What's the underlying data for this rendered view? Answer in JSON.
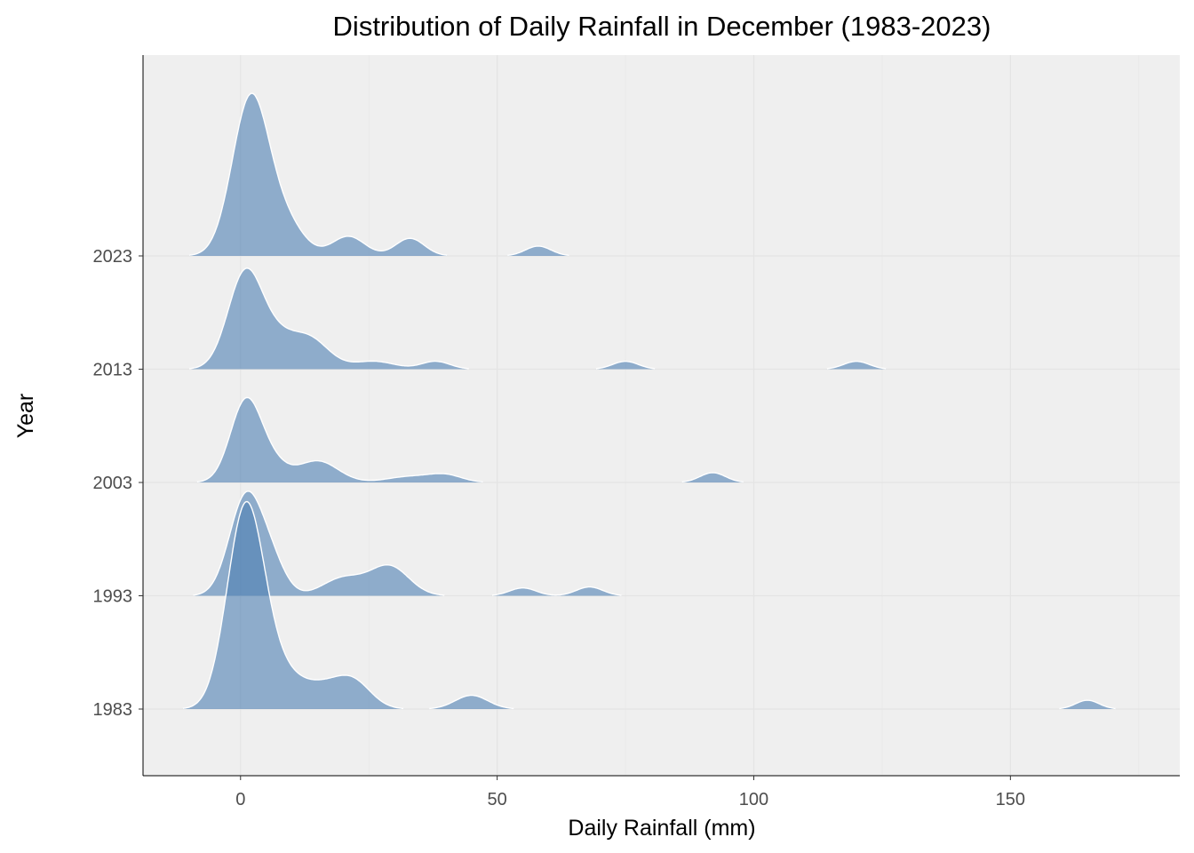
{
  "chart_data": {
    "type": "ridgeline",
    "title": "Distribution of Daily Rainfall in December (1983-2023)",
    "xlabel": "Daily Rainfall (mm)",
    "ylabel": "Year",
    "xlim": [
      -19,
      183
    ],
    "xticks": [
      0,
      50,
      100,
      150
    ],
    "grid": true,
    "fill_color": "#4d7fb3",
    "fill_opacity": 0.6,
    "outline_color": "#ffffff",
    "panel_color": "#efefef",
    "series": [
      {
        "name": "1983",
        "peaks": [
          {
            "x": 1,
            "height": 2.05,
            "width": 3.6
          },
          {
            "x": 8,
            "height": 0.32,
            "width": 4
          },
          {
            "x": 16,
            "height": 0.2,
            "width": 4
          },
          {
            "x": 22,
            "height": 0.26,
            "width": 3.5
          },
          {
            "x": 45,
            "height": 0.14,
            "width": 3.2
          },
          {
            "x": 165,
            "height": 0.09,
            "width": 2.3
          }
        ]
      },
      {
        "name": "1993",
        "peaks": [
          {
            "x": 1,
            "height": 1.0,
            "width": 3.2
          },
          {
            "x": 6,
            "height": 0.3,
            "width": 2.8
          },
          {
            "x": 20,
            "height": 0.18,
            "width": 4
          },
          {
            "x": 29,
            "height": 0.3,
            "width": 3.8
          },
          {
            "x": 55,
            "height": 0.08,
            "width": 2.6
          },
          {
            "x": 68,
            "height": 0.09,
            "width": 2.6
          }
        ]
      },
      {
        "name": "2003",
        "peaks": [
          {
            "x": 1,
            "height": 0.82,
            "width": 3
          },
          {
            "x": 6,
            "height": 0.18,
            "width": 3
          },
          {
            "x": 15,
            "height": 0.22,
            "width": 4
          },
          {
            "x": 33,
            "height": 0.06,
            "width": 4.5
          },
          {
            "x": 40,
            "height": 0.07,
            "width": 3.2
          },
          {
            "x": 92,
            "height": 0.1,
            "width": 2.5
          }
        ]
      },
      {
        "name": "2013",
        "peaks": [
          {
            "x": 1,
            "height": 1.0,
            "width": 3.4
          },
          {
            "x": 7,
            "height": 0.2,
            "width": 3
          },
          {
            "x": 13,
            "height": 0.33,
            "width": 4
          },
          {
            "x": 26,
            "height": 0.08,
            "width": 4
          },
          {
            "x": 38,
            "height": 0.08,
            "width": 2.8
          },
          {
            "x": 75,
            "height": 0.08,
            "width": 2.5
          },
          {
            "x": 120,
            "height": 0.08,
            "width": 2.5
          }
        ]
      },
      {
        "name": "2023",
        "peaks": [
          {
            "x": 2,
            "height": 1.62,
            "width": 3.6
          },
          {
            "x": 9,
            "height": 0.3,
            "width": 3.5
          },
          {
            "x": 21,
            "height": 0.2,
            "width": 3.2
          },
          {
            "x": 33,
            "height": 0.18,
            "width": 2.8
          },
          {
            "x": 58,
            "height": 0.1,
            "width": 2.5
          }
        ]
      }
    ]
  }
}
